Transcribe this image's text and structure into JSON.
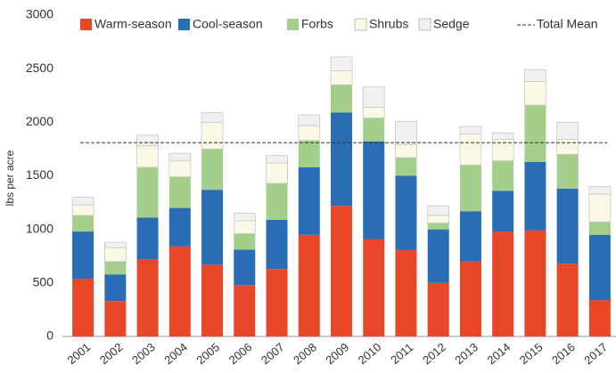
{
  "chart_data": {
    "type": "stacked-bar",
    "y_label": "lbs per acre",
    "categories": [
      "2001",
      "2002",
      "2003",
      "2004",
      "2005",
      "2006",
      "2007",
      "2008",
      "2009",
      "2010",
      "2011",
      "2012",
      "2013",
      "2014",
      "2015",
      "2016",
      "2017"
    ],
    "series": [
      {
        "name": "Warm-season",
        "color": "#e8472a",
        "values": [
          540,
          330,
          720,
          840,
          670,
          480,
          630,
          950,
          1220,
          910,
          810,
          500,
          700,
          980,
          990,
          680,
          340
        ]
      },
      {
        "name": "Cool-season",
        "color": "#2a6db5",
        "values": [
          440,
          250,
          390,
          360,
          700,
          330,
          460,
          630,
          870,
          910,
          690,
          500,
          470,
          380,
          640,
          700,
          610
        ]
      },
      {
        "name": "Forbs",
        "color": "#a3cf8a",
        "values": [
          150,
          120,
          470,
          290,
          380,
          150,
          340,
          250,
          260,
          220,
          170,
          60,
          430,
          280,
          530,
          320,
          120
        ]
      },
      {
        "name": "Shrubs",
        "color": "#fbf8e6",
        "values": [
          100,
          130,
          200,
          150,
          250,
          120,
          190,
          140,
          130,
          100,
          120,
          70,
          290,
          200,
          220,
          140,
          260
        ]
      },
      {
        "name": "Sedge",
        "color": "#f0f0f0",
        "values": [
          70,
          50,
          100,
          70,
          90,
          70,
          70,
          100,
          130,
          190,
          220,
          90,
          70,
          60,
          110,
          160,
          70
        ]
      }
    ],
    "mean_line": {
      "name": "Total Mean",
      "value": 1810,
      "color": "#333333"
    },
    "ylim": [
      0,
      3000
    ],
    "yticks": [
      0,
      500,
      1000,
      1500,
      2000,
      2500,
      3000
    ],
    "grid": false
  }
}
